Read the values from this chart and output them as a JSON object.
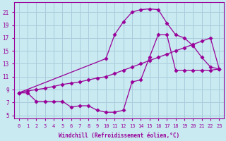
{
  "bg_color": "#c8eaf0",
  "line_color": "#990099",
  "grid_color": "#aaccdd",
  "xlabel": "Windchill (Refroidissement éolien,°C)",
  "xlabel_color": "#990099",
  "xticks": [
    0,
    1,
    2,
    3,
    4,
    5,
    6,
    7,
    8,
    9,
    10,
    11,
    12,
    13,
    14,
    15,
    16,
    17,
    18,
    19,
    20,
    21,
    22,
    23
  ],
  "yticks": [
    5,
    7,
    9,
    11,
    13,
    15,
    17,
    19,
    21
  ],
  "xlim": [
    -0.5,
    23.5
  ],
  "ylim": [
    4.5,
    22.5
  ],
  "curve1_x": [
    0,
    1,
    2,
    3,
    4,
    5,
    6,
    7,
    8,
    9,
    10,
    11,
    12,
    13,
    14,
    15,
    16,
    17,
    18,
    19,
    20,
    21,
    22,
    23
  ],
  "curve1_y": [
    8.5,
    8.5,
    7.2,
    7.2,
    7.2,
    7.2,
    6.3,
    6.5,
    6.5,
    5.8,
    5.5,
    5.5,
    5.8,
    10.2,
    10.5,
    14.0,
    17.5,
    17.5,
    12.0,
    12.0,
    12.0,
    12.0,
    12.0,
    12.2
  ],
  "curve2_x": [
    0,
    1,
    2,
    3,
    4,
    5,
    6,
    7,
    8,
    9,
    10,
    11,
    12,
    13,
    14,
    15,
    16,
    17,
    18,
    19,
    20,
    21,
    22,
    23
  ],
  "curve2_y": [
    8.5,
    8.8,
    9.0,
    9.2,
    9.5,
    9.8,
    10.0,
    10.2,
    10.5,
    10.8,
    11.0,
    11.5,
    12.0,
    12.5,
    13.0,
    13.5,
    14.0,
    14.5,
    15.0,
    15.5,
    16.0,
    16.5,
    17.0,
    12.2
  ],
  "curve3_x": [
    0,
    10,
    11,
    12,
    13,
    14,
    15,
    16,
    17,
    18,
    19,
    20,
    21,
    22,
    23
  ],
  "curve3_y": [
    8.5,
    13.8,
    17.5,
    19.5,
    21.0,
    21.4,
    21.5,
    21.4,
    19.3,
    17.5,
    17.0,
    15.8,
    14.0,
    12.5,
    12.2
  ]
}
